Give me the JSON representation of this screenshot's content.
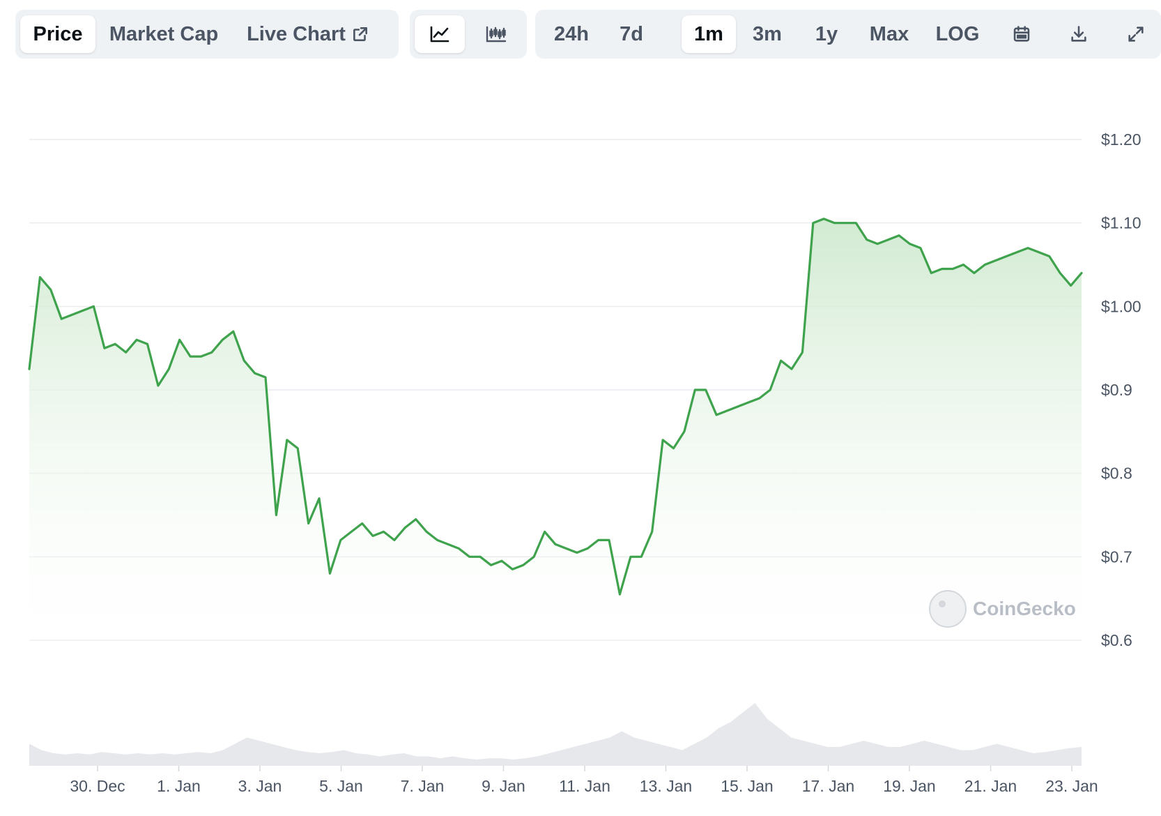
{
  "toolbar": {
    "view_tabs": [
      {
        "label": "Price",
        "active": true
      },
      {
        "label": "Market Cap",
        "active": false
      },
      {
        "label": "Live Chart",
        "active": false,
        "icon": "external-link-icon"
      }
    ],
    "chart_type_buttons": [
      {
        "icon": "line-chart-icon",
        "active": true
      },
      {
        "icon": "candlestick-chart-icon",
        "active": false
      }
    ],
    "ranges": [
      {
        "label": "24h",
        "active": false
      },
      {
        "label": "7d",
        "active": false
      },
      {
        "label": "1m",
        "active": true
      },
      {
        "label": "3m",
        "active": false
      },
      {
        "label": "1y",
        "active": false
      },
      {
        "label": "Max",
        "active": false
      },
      {
        "label": "LOG",
        "active": false
      }
    ],
    "tool_icons": [
      "calendar-icon",
      "download-icon",
      "fullscreen-icon"
    ]
  },
  "watermark": "CoinGecko",
  "colors": {
    "line": "#3fa24c",
    "fill_top": "#cfe9cf",
    "grid": "#e9ecef",
    "volume": "#e6e8ec",
    "text": "#4b5563"
  },
  "chart_data": {
    "type": "area",
    "title": "",
    "xlabel": "",
    "ylabel": "",
    "ylim": [
      0.6,
      1.2
    ],
    "y_ticks": [
      1.2,
      1.1,
      1.0,
      0.9,
      0.8,
      0.7,
      0.6
    ],
    "y_tick_labels": [
      "$1.20",
      "$1.10",
      "$1.00",
      "$0.9",
      "$0.8",
      "$0.7",
      "$0.6"
    ],
    "x_tick_labels": [
      "30. Dec",
      "1. Jan",
      "3. Jan",
      "5. Jan",
      "7. Jan",
      "9. Jan",
      "11. Jan",
      "13. Jan",
      "15. Jan",
      "17. Jan",
      "19. Jan",
      "21. Jan",
      "23. Jan"
    ],
    "x_range": [
      "28. Dec",
      "23. Jan"
    ],
    "grid": true,
    "legend": "none",
    "series": [
      {
        "values": [
          0.925,
          1.035,
          1.02,
          0.985,
          0.99,
          0.995,
          1.0,
          0.95,
          0.955,
          0.945,
          0.96,
          0.955,
          0.905,
          0.925,
          0.96,
          0.94,
          0.94,
          0.945,
          0.96,
          0.97,
          0.935,
          0.92,
          0.915,
          0.75,
          0.84,
          0.83,
          0.74,
          0.77,
          0.68,
          0.72,
          0.73,
          0.74,
          0.725,
          0.73,
          0.72,
          0.735,
          0.745,
          0.73,
          0.72,
          0.715,
          0.71,
          0.7,
          0.7,
          0.69,
          0.695,
          0.685,
          0.69,
          0.7,
          0.73,
          0.715,
          0.71,
          0.705,
          0.71,
          0.72,
          0.72,
          0.655,
          0.7,
          0.7,
          0.73,
          0.84,
          0.83,
          0.85,
          0.9,
          0.9,
          0.87,
          0.875,
          0.88,
          0.885,
          0.89,
          0.9,
          0.935,
          0.925,
          0.945,
          1.1,
          1.105,
          1.1,
          1.1,
          1.1,
          1.08,
          1.075,
          1.08,
          1.085,
          1.075,
          1.07,
          1.04,
          1.045,
          1.045,
          1.05,
          1.04,
          1.05,
          1.055,
          1.06,
          1.065,
          1.07,
          1.065,
          1.06,
          1.04,
          1.025,
          1.04
        ]
      }
    ],
    "volume": [
      0.35,
      0.25,
      0.2,
      0.18,
      0.2,
      0.18,
      0.22,
      0.2,
      0.18,
      0.2,
      0.18,
      0.2,
      0.18,
      0.2,
      0.22,
      0.2,
      0.25,
      0.35,
      0.45,
      0.4,
      0.35,
      0.3,
      0.25,
      0.22,
      0.2,
      0.22,
      0.25,
      0.2,
      0.18,
      0.15,
      0.18,
      0.2,
      0.15,
      0.15,
      0.12,
      0.15,
      0.12,
      0.1,
      0.12,
      0.12,
      0.1,
      0.12,
      0.15,
      0.2,
      0.25,
      0.3,
      0.35,
      0.4,
      0.45,
      0.55,
      0.45,
      0.4,
      0.35,
      0.3,
      0.25,
      0.35,
      0.45,
      0.6,
      0.7,
      0.85,
      1.0,
      0.75,
      0.6,
      0.45,
      0.4,
      0.35,
      0.3,
      0.3,
      0.35,
      0.4,
      0.35,
      0.3,
      0.3,
      0.35,
      0.4,
      0.35,
      0.3,
      0.25,
      0.25,
      0.3,
      0.35,
      0.3,
      0.25,
      0.2,
      0.22,
      0.25,
      0.28,
      0.3
    ]
  }
}
